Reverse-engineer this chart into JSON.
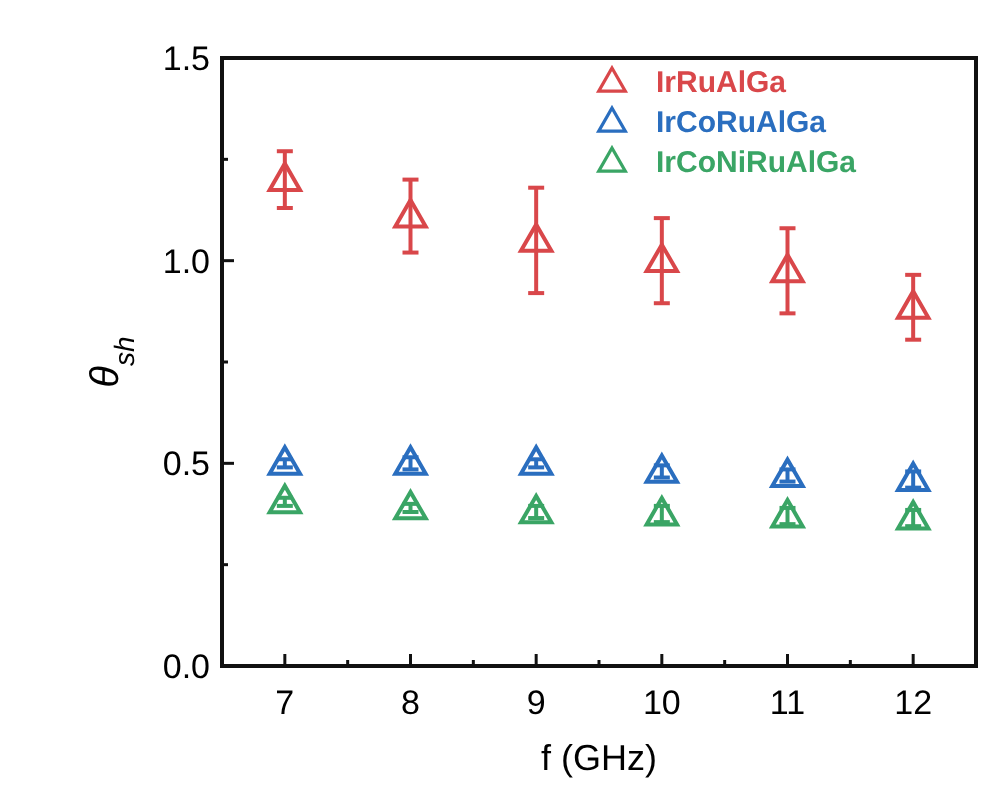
{
  "chart_data": {
    "type": "scatter",
    "xlabel": "f (GHz)",
    "ylabel": "θ$_{sh}$",
    "x": [
      7,
      8,
      9,
      10,
      11,
      12
    ],
    "xlim": [
      6.5,
      12.5
    ],
    "xticks": [
      7,
      {
        "value": 7.5,
        "label": null
      },
      8,
      {
        "value": 8.5,
        "label": null
      },
      9,
      {
        "value": 9.5,
        "label": null
      },
      10,
      {
        "value": 10.5,
        "label": null
      },
      11,
      {
        "value": 11.5,
        "label": null
      },
      12
    ],
    "ylim": [
      0,
      1.5
    ],
    "yticks": [
      {
        "value": 0,
        "label": "0.0"
      },
      {
        "value": 0.25,
        "label": null
      },
      {
        "value": 0.5,
        "label": "0.5"
      },
      {
        "value": 0.75,
        "label": null
      },
      {
        "value": 1,
        "label": "1.0"
      },
      {
        "value": 1.25,
        "label": null
      },
      {
        "value": 1.5,
        "label": "1.5"
      }
    ],
    "marker": "triangle",
    "legend": "top right",
    "grid": false,
    "series": [
      {
        "name": "IrRuAlGa",
        "color": "#d9474a",
        "values": [
          1.2,
          1.11,
          1.05,
          1.0,
          0.975,
          0.885
        ],
        "errors": [
          0.07,
          0.09,
          0.13,
          0.105,
          0.105,
          0.08
        ]
      },
      {
        "name": "IrCoRuAlGa",
        "color": "#2a6ebf",
        "values": [
          0.5,
          0.5,
          0.5,
          0.48,
          0.47,
          0.46
        ],
        "errors": [
          0.01,
          0.015,
          0.01,
          0.015,
          0.015,
          0.02
        ]
      },
      {
        "name": "IrCoNiRuAlGa",
        "color": "#3aa565",
        "values": [
          0.405,
          0.39,
          0.38,
          0.375,
          0.37,
          0.365
        ],
        "errors": [
          0.01,
          0.01,
          0.015,
          0.02,
          0.02,
          0.02
        ]
      }
    ]
  }
}
